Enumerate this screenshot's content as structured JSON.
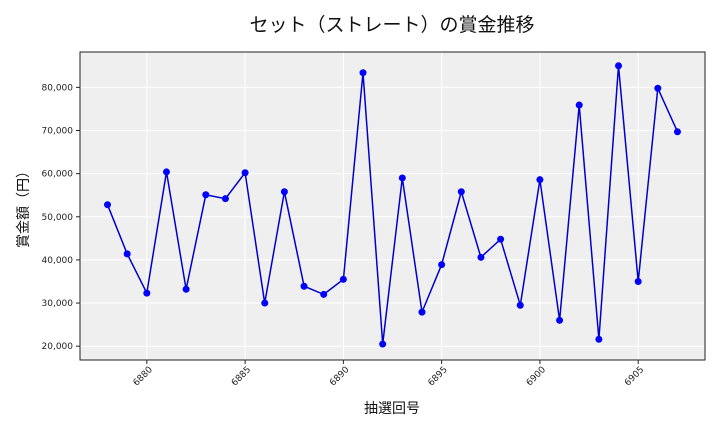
{
  "chart_data": {
    "type": "line",
    "title": "セット（ストレート）の賞金推移",
    "xlabel": "抽選回号",
    "ylabel": "賞金額（円）",
    "x": [
      6878,
      6879,
      6880,
      6881,
      6882,
      6883,
      6884,
      6885,
      6886,
      6887,
      6888,
      6889,
      6890,
      6891,
      6892,
      6893,
      6894,
      6895,
      6896,
      6897,
      6898,
      6899,
      6900,
      6901,
      6902,
      6903,
      6904,
      6905,
      6906,
      6907
    ],
    "series": [
      {
        "name": "賞金額",
        "color": "#0000cc",
        "marker_color": "#0000ff",
        "values": [
          52800,
          41400,
          32300,
          60400,
          33200,
          55100,
          54200,
          60200,
          30000,
          55800,
          33900,
          32000,
          35500,
          83400,
          20500,
          59000,
          27900,
          38900,
          55800,
          40600,
          44800,
          29500,
          58600,
          26000,
          75900,
          21600,
          85000,
          35000,
          79800,
          69700
        ]
      }
    ],
    "xticks": [
      6880,
      6885,
      6890,
      6895,
      6900,
      6905
    ],
    "xtick_labels": [
      "6880",
      "6885",
      "6890",
      "6895",
      "6900",
      "6905"
    ],
    "yticks": [
      20000,
      30000,
      40000,
      50000,
      60000,
      70000,
      80000
    ],
    "ytick_labels": [
      "20,000",
      "30,000",
      "40,000",
      "50,000",
      "60,000",
      "70,000",
      "80,000"
    ],
    "xlim": [
      6876.6,
      6908.4
    ],
    "ylim": [
      16800,
      88200
    ],
    "grid": true,
    "legend": null,
    "background": "#efefef",
    "grid_color": "#ffffff"
  }
}
